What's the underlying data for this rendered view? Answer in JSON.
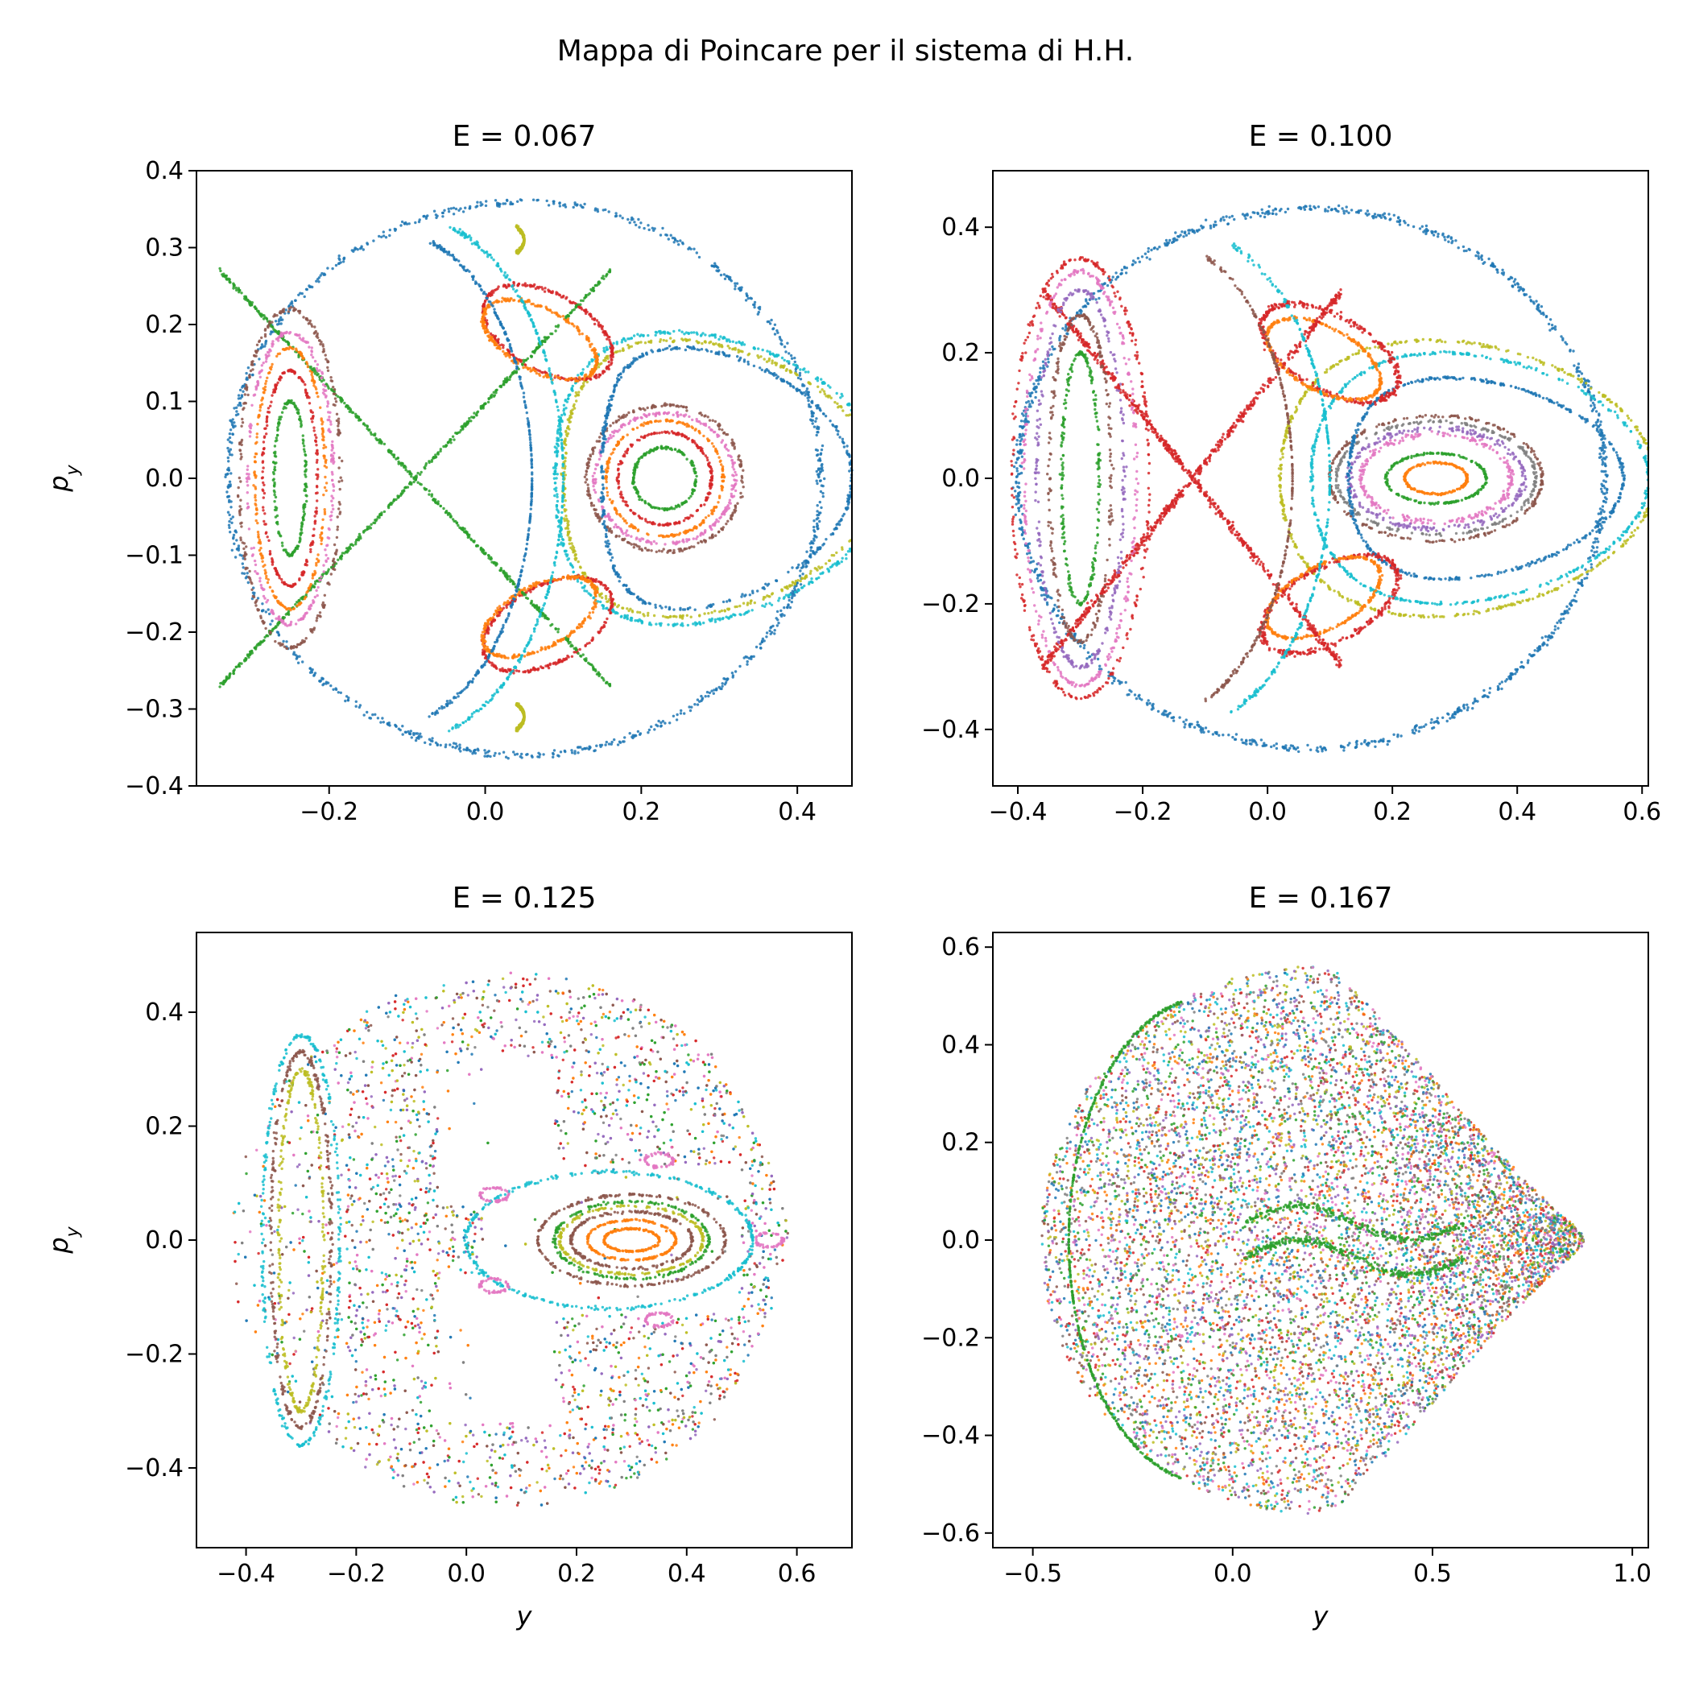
{
  "figure": {
    "title": "Mappa di Poincare per il sistema di H.H."
  },
  "palette": [
    "#1f77b4",
    "#ff7f0e",
    "#2ca02c",
    "#d62728",
    "#9467bd",
    "#8c564b",
    "#e377c2",
    "#7f7f7f",
    "#bcbd22",
    "#17becf"
  ],
  "chart_data": [
    {
      "type": "scatter",
      "title": "E = 0.067",
      "energy": 0.067,
      "xlabel": "",
      "ylabel": "p_y",
      "xlim": [
        -0.37,
        0.47
      ],
      "ylim": [
        -0.4,
        0.4
      ],
      "xticks": [
        -0.2,
        0.0,
        0.2,
        0.4
      ],
      "xtick_labels": [
        "−0.2",
        "0.0",
        "0.2",
        "0.4"
      ],
      "yticks": [
        -0.4,
        -0.3,
        -0.2,
        -0.1,
        0.0,
        0.1,
        0.2,
        0.3,
        0.4
      ],
      "ytick_labels": [
        "−0.4",
        "−0.3",
        "−0.2",
        "−0.1",
        "0.0",
        "0.1",
        "0.2",
        "0.3",
        "0.4"
      ],
      "grid": false,
      "legend": "none"
    },
    {
      "type": "scatter",
      "title": "E = 0.100",
      "energy": 0.1,
      "xlabel": "",
      "ylabel": "",
      "xlim": [
        -0.44,
        0.61
      ],
      "ylim": [
        -0.49,
        0.49
      ],
      "xticks": [
        -0.4,
        -0.2,
        0.0,
        0.2,
        0.4,
        0.6
      ],
      "xtick_labels": [
        "−0.4",
        "−0.2",
        "0.0",
        "0.2",
        "0.4",
        "0.6"
      ],
      "yticks": [
        -0.4,
        -0.2,
        0.0,
        0.2,
        0.4
      ],
      "ytick_labels": [
        "−0.4",
        "−0.2",
        "0.0",
        "0.2",
        "0.4"
      ],
      "grid": false,
      "legend": "none"
    },
    {
      "type": "scatter",
      "title": "E = 0.125",
      "energy": 0.125,
      "xlabel": "y",
      "ylabel": "p_y",
      "xlim": [
        -0.49,
        0.7
      ],
      "ylim": [
        -0.54,
        0.54
      ],
      "xticks": [
        -0.4,
        -0.2,
        0.0,
        0.2,
        0.4,
        0.6
      ],
      "xtick_labels": [
        "−0.4",
        "−0.2",
        "0.0",
        "0.2",
        "0.4",
        "0.6"
      ],
      "yticks": [
        -0.4,
        -0.2,
        0.0,
        0.2,
        0.4
      ],
      "ytick_labels": [
        "−0.4",
        "−0.2",
        "0.0",
        "0.2",
        "0.4"
      ],
      "grid": false,
      "legend": "none"
    },
    {
      "type": "scatter",
      "title": "E = 0.167",
      "energy": 0.167,
      "xlabel": "y",
      "ylabel": "",
      "xlim": [
        -0.6,
        1.04
      ],
      "ylim": [
        -0.63,
        0.63
      ],
      "xticks": [
        -0.5,
        0.0,
        0.5,
        1.0
      ],
      "xtick_labels": [
        "−0.5",
        "0.0",
        "0.5",
        "1.0"
      ],
      "yticks": [
        -0.6,
        -0.4,
        -0.2,
        0.0,
        0.2,
        0.4,
        0.6
      ],
      "ytick_labels": [
        "−0.6",
        "−0.4",
        "−0.2",
        "0.0",
        "0.2",
        "0.4",
        "0.6"
      ],
      "grid": false,
      "legend": "none"
    }
  ]
}
